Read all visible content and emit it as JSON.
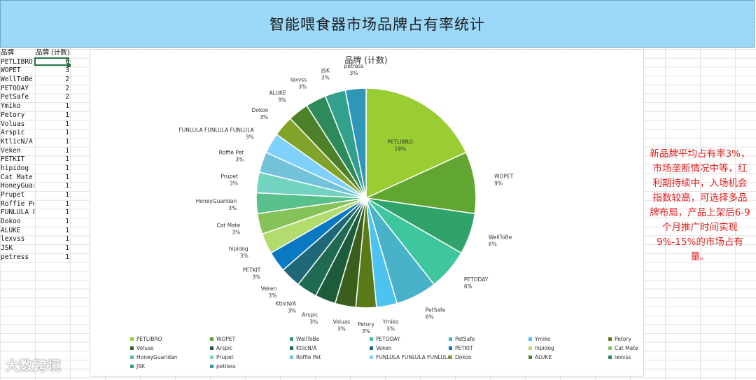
{
  "banner": {
    "title": "智能喂食器市场品牌占有率统计"
  },
  "sheet": {
    "headers": [
      "品牌",
      "品牌 (计数)"
    ],
    "rows": [
      [
        "PETLIBRO",
        "6"
      ],
      [
        "WOPET",
        "3"
      ],
      [
        "WellToBe",
        "2"
      ],
      [
        "PETODAY",
        "2"
      ],
      [
        "PetSafe",
        "2"
      ],
      [
        "Ymiko",
        "1"
      ],
      [
        "Petory",
        "1"
      ],
      [
        "Voluas",
        "1"
      ],
      [
        "Arspic",
        "1"
      ],
      [
        "KtlicN/A",
        "1"
      ],
      [
        "Veken",
        "1"
      ],
      [
        "PETKIT",
        "1"
      ],
      [
        "hipidog",
        "1"
      ],
      [
        "Cat Mate",
        "1"
      ],
      [
        "HoneyGuar",
        "1"
      ],
      [
        "Prupet",
        "1"
      ],
      [
        "Roffie Pe",
        "1"
      ],
      [
        "FUNLULA F",
        "1"
      ],
      [
        "Dokoo",
        "1"
      ],
      [
        "ALUKE",
        "1"
      ],
      [
        "lexvss",
        "1"
      ],
      [
        "JSK",
        "1"
      ],
      [
        "petress",
        "1"
      ]
    ]
  },
  "note": {
    "text": "新品牌平均占有率3%，市场垄断情况中等，红利期持续中，入场机会指数较高，可选择多品牌布局，产品上架后6-9个月推广时间实现9%-15%的市场占有量。"
  },
  "watermark": {
    "text": "大数跨境"
  },
  "chart_data": {
    "type": "pie",
    "title": "品牌 (计数)",
    "legend_position": "bottom",
    "slices": [
      {
        "label": "PETLIBRO",
        "value": 6,
        "pct": "19%",
        "color": "#9acd32"
      },
      {
        "label": "WOPET",
        "value": 3,
        "pct": "9%",
        "color": "#62a632"
      },
      {
        "label": "WellToBe",
        "value": 2,
        "pct": "6%",
        "color": "#2fa36a"
      },
      {
        "label": "PETODAY",
        "value": 2,
        "pct": "6%",
        "color": "#3ec79e"
      },
      {
        "label": "PetSafe",
        "value": 2,
        "pct": "6%",
        "color": "#49b2c8"
      },
      {
        "label": "Ymiko",
        "value": 1,
        "pct": "3%",
        "color": "#4dc3f2"
      },
      {
        "label": "Petory",
        "value": 1,
        "pct": "3%",
        "color": "#5a7a18"
      },
      {
        "label": "Voluas",
        "value": 1,
        "pct": "3%",
        "color": "#3a5e1c"
      },
      {
        "label": "Arspic",
        "value": 1,
        "pct": "3%",
        "color": "#1d5c3a"
      },
      {
        "label": "KtlicN/A",
        "value": 1,
        "pct": "3%",
        "color": "#206a52"
      },
      {
        "label": "Veken",
        "value": 1,
        "pct": "3%",
        "color": "#1f6878"
      },
      {
        "label": "PETKIT",
        "value": 1,
        "pct": "3%",
        "color": "#0879c2"
      },
      {
        "label": "hipidog",
        "value": 1,
        "pct": "3%",
        "color": "#b4db6e"
      },
      {
        "label": "Cat Mate",
        "value": 1,
        "pct": "3%",
        "color": "#86c25a"
      },
      {
        "label": "HoneyGuaridan",
        "value": 1,
        "pct": "3%",
        "color": "#58c08b"
      },
      {
        "label": "Prupet",
        "value": 1,
        "pct": "3%",
        "color": "#72d4c0"
      },
      {
        "label": "Roffie Pet",
        "value": 1,
        "pct": "3%",
        "color": "#72c2da"
      },
      {
        "label": "FUNLULA FUNLULA FUNLULA",
        "value": 1,
        "pct": "3%",
        "color": "#7fd0fa"
      },
      {
        "label": "Dokoo",
        "value": 1,
        "pct": "3%",
        "color": "#82a32a"
      },
      {
        "label": "ALUKE",
        "value": 1,
        "pct": "3%",
        "color": "#4e802a"
      },
      {
        "label": "lexvss",
        "value": 1,
        "pct": "3%",
        "color": "#2e8a5a"
      },
      {
        "label": "JSK",
        "value": 1,
        "pct": "3%",
        "color": "#32a08c"
      },
      {
        "label": "petress",
        "value": 1,
        "pct": "3%",
        "color": "#3096b8"
      }
    ]
  }
}
